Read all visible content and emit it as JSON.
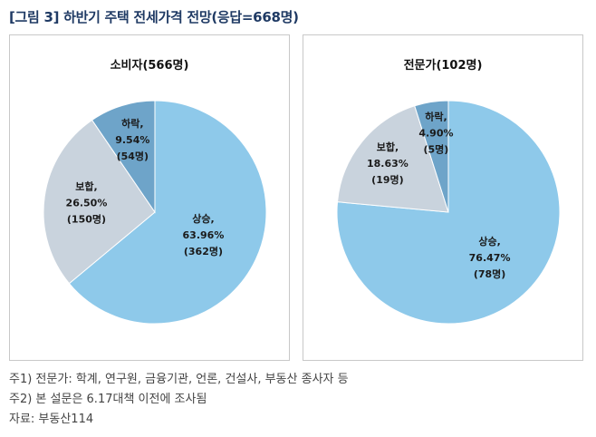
{
  "figure_title": "[그림 3] 하반기 주택 전세가격 전망(응답=668명)",
  "colors": {
    "title": "#1f3a64",
    "rise": "#8ec9ea",
    "same": "#c9d3dd",
    "fall": "#6ea4c9"
  },
  "chart_data": [
    {
      "type": "pie",
      "title": "소비자(566명)",
      "slices": [
        {
          "name": "상승,",
          "percent_label": "63.96%",
          "count_label": "(362명)",
          "value": 63.96,
          "color": "#8ec9ea"
        },
        {
          "name": "보합,",
          "percent_label": "26.50%",
          "count_label": "(150명)",
          "value": 26.5,
          "color": "#c9d3dd"
        },
        {
          "name": "하락,",
          "percent_label": "9.54%",
          "count_label": "(54명)",
          "value": 9.54,
          "color": "#6ea4c9"
        }
      ]
    },
    {
      "type": "pie",
      "title": "전문가(102명)",
      "slices": [
        {
          "name": "상승,",
          "percent_label": "76.47%",
          "count_label": "(78명)",
          "value": 76.47,
          "color": "#8ec9ea"
        },
        {
          "name": "보합,",
          "percent_label": "18.63%",
          "count_label": "(19명)",
          "value": 18.63,
          "color": "#c9d3dd"
        },
        {
          "name": "하락,",
          "percent_label": "4.90%",
          "count_label": "(5명)",
          "value": 4.9,
          "color": "#6ea4c9"
        }
      ]
    }
  ],
  "notes": [
    "주1) 전문가: 학계, 연구원, 금융기관, 언론, 건설사, 부동산 종사자 등",
    "주2) 본 설문은 6.17대책 이전에 조사됨",
    "자료: 부동산114"
  ]
}
